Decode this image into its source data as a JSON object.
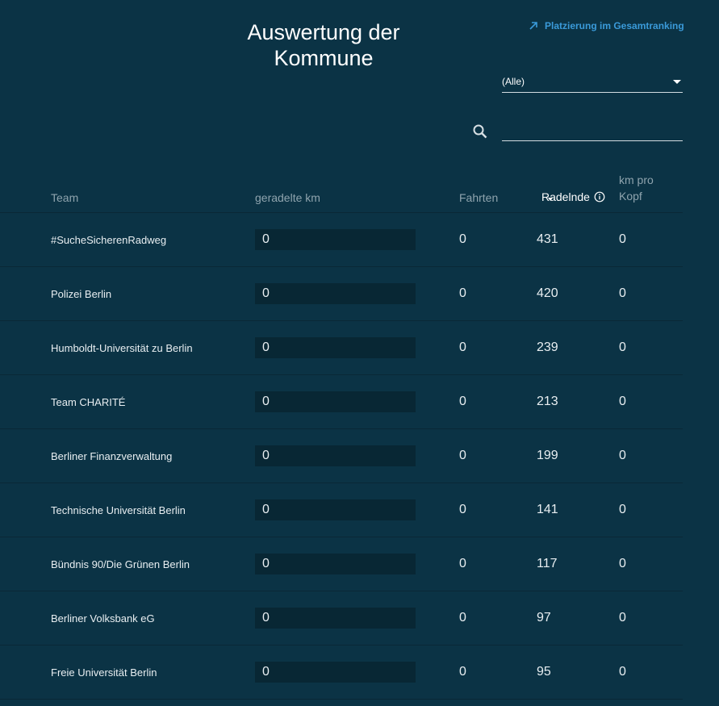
{
  "header": {
    "title": "Auswertung der Kommune",
    "rank_link": "Platzierung im Gesamtranking"
  },
  "filter": {
    "selected": "(Alle)"
  },
  "search": {
    "value": "",
    "placeholder": ""
  },
  "table": {
    "columns": {
      "team": "Team",
      "km": "geradelte km",
      "fahrten": "Fahrten",
      "radelnde": "Radelnde",
      "kopf": "km pro Kopf"
    },
    "rows": [
      {
        "team": "#SucheSicherenRadweg",
        "km": "0",
        "fahrten": "0",
        "radelnde": "431",
        "kopf": "0"
      },
      {
        "team": "Polizei Berlin",
        "km": "0",
        "fahrten": "0",
        "radelnde": "420",
        "kopf": "0"
      },
      {
        "team": "Humboldt-Universität zu Berlin",
        "km": "0",
        "fahrten": "0",
        "radelnde": "239",
        "kopf": "0"
      },
      {
        "team": "Team CHARITÉ",
        "km": "0",
        "fahrten": "0",
        "radelnde": "213",
        "kopf": "0"
      },
      {
        "team": "Berliner Finanzverwaltung",
        "km": "0",
        "fahrten": "0",
        "radelnde": "199",
        "kopf": "0"
      },
      {
        "team": "Technische Universität Berlin",
        "km": "0",
        "fahrten": "0",
        "radelnde": "141",
        "kopf": "0"
      },
      {
        "team": "Bündnis 90/Die Grünen Berlin",
        "km": "0",
        "fahrten": "0",
        "radelnde": "117",
        "kopf": "0"
      },
      {
        "team": "Berliner Volksbank eG",
        "km": "0",
        "fahrten": "0",
        "radelnde": "97",
        "kopf": "0"
      },
      {
        "team": "Freie Universität Berlin",
        "km": "0",
        "fahrten": "0",
        "radelnde": "95",
        "kopf": "0"
      }
    ]
  },
  "icons": {
    "link": "arrow-up-right-icon",
    "search": "search-icon",
    "info": "info-icon",
    "dropdown": "chevron-down-icon",
    "sort": "sort-desc-icon"
  },
  "colors": {
    "background": "#0b3345",
    "accent": "#3a9ad9",
    "bar": "#082734"
  }
}
